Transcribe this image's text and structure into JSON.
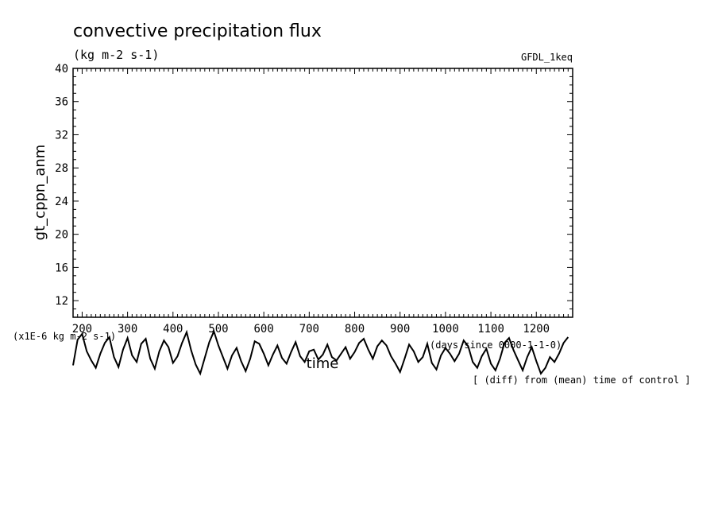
{
  "chart_data": {
    "type": "line",
    "title": "convective precipitation flux",
    "units": "(kg m-2 s-1)",
    "model_label": "GFDL_1keq",
    "ylabel": "gt_cppn_anm",
    "xlabel": "time",
    "y_multiplier_label": "(x1E-6 kg m-2 s-1)",
    "x_units_label": "(days since 0000-1-1-0)",
    "annotation": "[ (diff) from (mean) time of control ]",
    "xlim": [
      180,
      1280
    ],
    "ylim": [
      10,
      40
    ],
    "x_ticks": [
      200,
      300,
      400,
      500,
      600,
      700,
      800,
      900,
      1000,
      1100,
      1200
    ],
    "y_ticks": [
      12,
      16,
      20,
      24,
      28,
      32,
      36,
      40
    ],
    "grid": false,
    "series": [
      {
        "x": [
          180,
          190,
          200,
          210,
          220,
          230,
          240,
          250,
          260,
          270,
          280,
          290,
          300,
          310,
          320,
          330,
          340,
          350,
          360,
          370,
          380,
          390,
          400,
          410,
          420,
          430,
          440,
          450,
          460,
          470,
          480,
          490,
          500,
          510,
          520,
          530,
          540,
          550,
          560,
          570,
          580,
          590,
          600,
          610,
          620,
          630,
          640,
          650,
          660,
          670,
          680,
          690,
          700,
          710,
          720,
          730,
          740,
          750,
          760,
          770,
          780,
          790,
          800,
          810,
          820,
          830,
          840,
          850,
          860,
          870,
          880,
          890,
          900,
          910,
          920,
          930,
          940,
          950,
          960,
          970,
          980,
          990,
          1000,
          1010,
          1020,
          1030,
          1040,
          1050,
          1060,
          1070,
          1080,
          1090,
          1100,
          1110,
          1120,
          1130,
          1140,
          1150,
          1160,
          1170,
          1180,
          1190,
          1200,
          1210,
          1220,
          1230,
          1240,
          1250,
          1260,
          1270
        ],
        "y": [
          4.2,
          7.3,
          8.0,
          5.9,
          4.8,
          3.9,
          5.6,
          6.9,
          7.6,
          5.2,
          4.0,
          6.1,
          7.5,
          5.4,
          4.6,
          6.8,
          7.4,
          5.0,
          3.8,
          5.9,
          7.2,
          6.4,
          4.5,
          5.3,
          6.9,
          8.2,
          6.0,
          4.3,
          3.2,
          5.1,
          7.0,
          8.3,
          6.6,
          5.2,
          3.8,
          5.4,
          6.3,
          4.7,
          3.5,
          5.0,
          7.1,
          6.8,
          5.6,
          4.2,
          5.5,
          6.6,
          5.1,
          4.4,
          5.8,
          7.0,
          5.3,
          4.6,
          5.9,
          6.1,
          4.9,
          5.5,
          6.7,
          5.2,
          4.8,
          5.6,
          6.4,
          5.0,
          5.8,
          6.9,
          7.4,
          6.1,
          5.0,
          6.5,
          7.2,
          6.6,
          5.3,
          4.4,
          3.4,
          5.0,
          6.7,
          5.9,
          4.6,
          5.2,
          6.8,
          4.5,
          3.7,
          5.4,
          6.3,
          5.6,
          4.7,
          5.6,
          7.2,
          6.5,
          4.6,
          3.9,
          5.3,
          6.2,
          4.4,
          3.6,
          5.0,
          6.9,
          7.5,
          6.0,
          4.8,
          3.6,
          5.2,
          6.4,
          4.7,
          3.2,
          3.9,
          5.2,
          4.6,
          5.6,
          6.9,
          7.6
        ]
      }
    ]
  }
}
